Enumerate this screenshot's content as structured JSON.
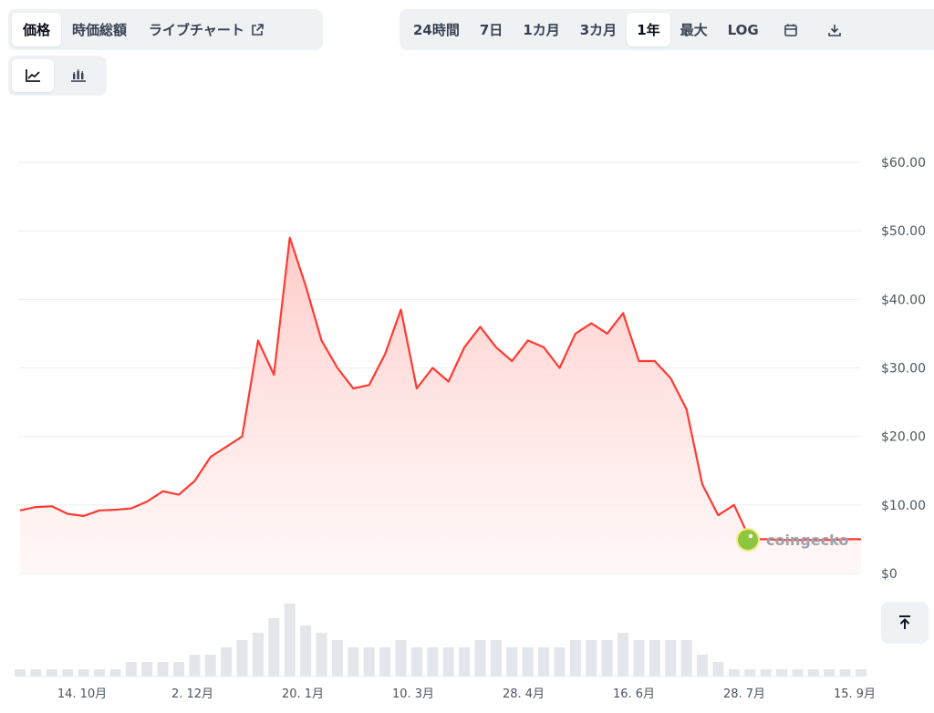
{
  "tabs_left": [
    {
      "label": "価格",
      "active": true
    },
    {
      "label": "時価総額",
      "active": false
    },
    {
      "label": "ライブチャート",
      "active": false,
      "external": true
    }
  ],
  "tabs_right": [
    {
      "label": "24時間",
      "active": false
    },
    {
      "label": "7日",
      "active": false
    },
    {
      "label": "1カ月",
      "active": false
    },
    {
      "label": "3カ月",
      "active": false
    },
    {
      "label": "1年",
      "active": true
    },
    {
      "label": "最大",
      "active": false
    },
    {
      "label": "LOG",
      "active": false
    }
  ],
  "icons": {
    "calendar": "calendar-icon",
    "download": "download-icon",
    "line_chart": "line-chart-icon",
    "candlestick": "candlestick-icon",
    "scroll_top": "arrow-up-to-line-icon",
    "external": "external-link-icon"
  },
  "watermark": "coingecko",
  "colors": {
    "line": "#ff3a33",
    "fill_top": "#ffc9c6",
    "grid": "#eceef1",
    "volume": "#e3e6ea",
    "toolbar_bg": "#eff2f5"
  },
  "chart_data": {
    "type": "area",
    "title": "",
    "xlabel": "",
    "ylabel": "",
    "ylim": [
      0,
      60
    ],
    "y_ticks": [
      "$0",
      "$10.00",
      "$20.00",
      "$30.00",
      "$40.00",
      "$50.00",
      "$60.00"
    ],
    "x_ticks": [
      "14. 10月",
      "2. 12月",
      "20. 1月",
      "10. 3月",
      "28. 4月",
      "16. 6月",
      "28. 7月",
      "15. 9月"
    ],
    "grid": true,
    "series": [
      {
        "x": [
          "9/17",
          "9/24",
          "10/1",
          "10/8",
          "10/15",
          "10/22",
          "10/29",
          "11/5",
          "11/12",
          "11/19",
          "11/26",
          "12/3",
          "12/10",
          "12/17",
          "12/24",
          "12/31",
          "1/7",
          "1/10",
          "1/14",
          "1/21",
          "1/28",
          "2/4",
          "2/11",
          "2/18",
          "2/25",
          "3/3",
          "3/10",
          "3/17",
          "3/24",
          "3/31",
          "4/7",
          "4/14",
          "4/21",
          "4/28",
          "5/5",
          "5/12",
          "5/19",
          "5/26",
          "6/2",
          "6/9",
          "6/16",
          "6/23",
          "6/30",
          "7/7",
          "7/14",
          "7/21",
          "7/28",
          "8/4",
          "8/11",
          "8/18",
          "8/25",
          "9/1",
          "9/8",
          "9/15"
        ],
        "values": [
          9.2,
          9.7,
          9.8,
          8.7,
          8.4,
          9.2,
          9.3,
          9.5,
          10.5,
          12.0,
          11.5,
          13.5,
          17.0,
          18.5,
          20.0,
          34.0,
          29.0,
          49.0,
          42.0,
          34.0,
          30.0,
          27.0,
          27.5,
          32.0,
          38.5,
          27.0,
          30.0,
          28.0,
          33.0,
          36.0,
          33.0,
          31.0,
          34.0,
          33.0,
          30.0,
          35.0,
          36.5,
          35.0,
          38.0,
          31.0,
          31.0,
          28.5,
          24.0,
          13.0,
          8.5,
          10.0,
          5.0,
          5.0,
          4.9,
          4.9,
          4.9,
          4.9,
          5.0,
          5.0
        ]
      }
    ],
    "volume": [
      1,
      1,
      1,
      1,
      1,
      1,
      1,
      2,
      2,
      2,
      2,
      3,
      3,
      4,
      5,
      6,
      8,
      10,
      7,
      6,
      5,
      4,
      4,
      4,
      5,
      4,
      4,
      4,
      4,
      5,
      5,
      4,
      4,
      4,
      4,
      5,
      5,
      5,
      6,
      5,
      5,
      5,
      5,
      3,
      2,
      1,
      1,
      1,
      1,
      1,
      1,
      1,
      1,
      1
    ]
  }
}
